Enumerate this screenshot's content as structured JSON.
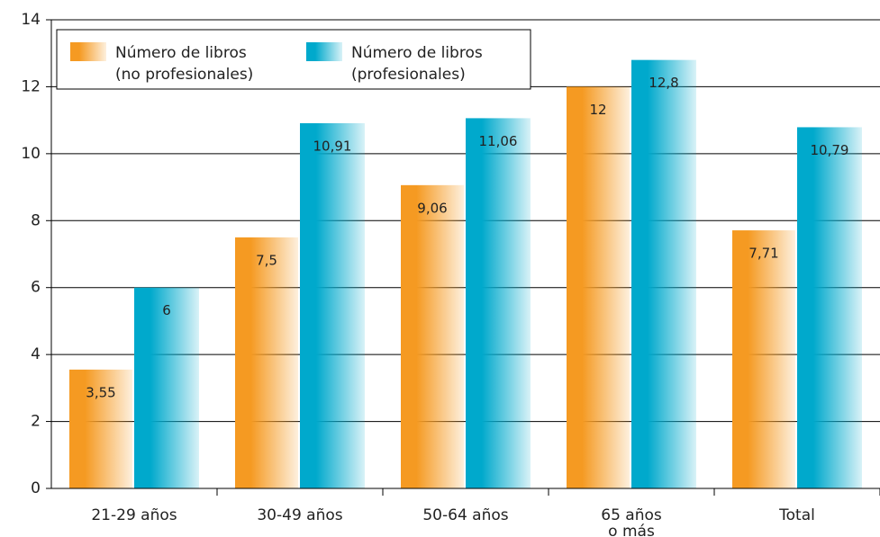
{
  "chart_data": {
    "type": "bar",
    "categories": [
      "21-29 años",
      "30-49 años",
      "50-64 años",
      "65 años o más",
      "Total"
    ],
    "series": [
      {
        "name": "Número de libros (no profesionales)",
        "color": "#f59a22",
        "values": [
          3.55,
          7.5,
          9.06,
          12,
          7.71
        ],
        "value_labels": [
          "3,55",
          "7,5",
          "9,06",
          "12",
          "7,71"
        ]
      },
      {
        "name": "Número de libros (profesionales)",
        "color": "#00a9cc",
        "values": [
          6,
          10.91,
          11.06,
          12.8,
          10.79
        ],
        "value_labels": [
          "6",
          "10,91",
          "11,06",
          "12,8",
          "10,79"
        ]
      }
    ],
    "ylim": [
      0,
      14
    ],
    "yticks": [
      0,
      2,
      4,
      6,
      8,
      10,
      12,
      14
    ],
    "grid": true,
    "legend": "top-left"
  }
}
